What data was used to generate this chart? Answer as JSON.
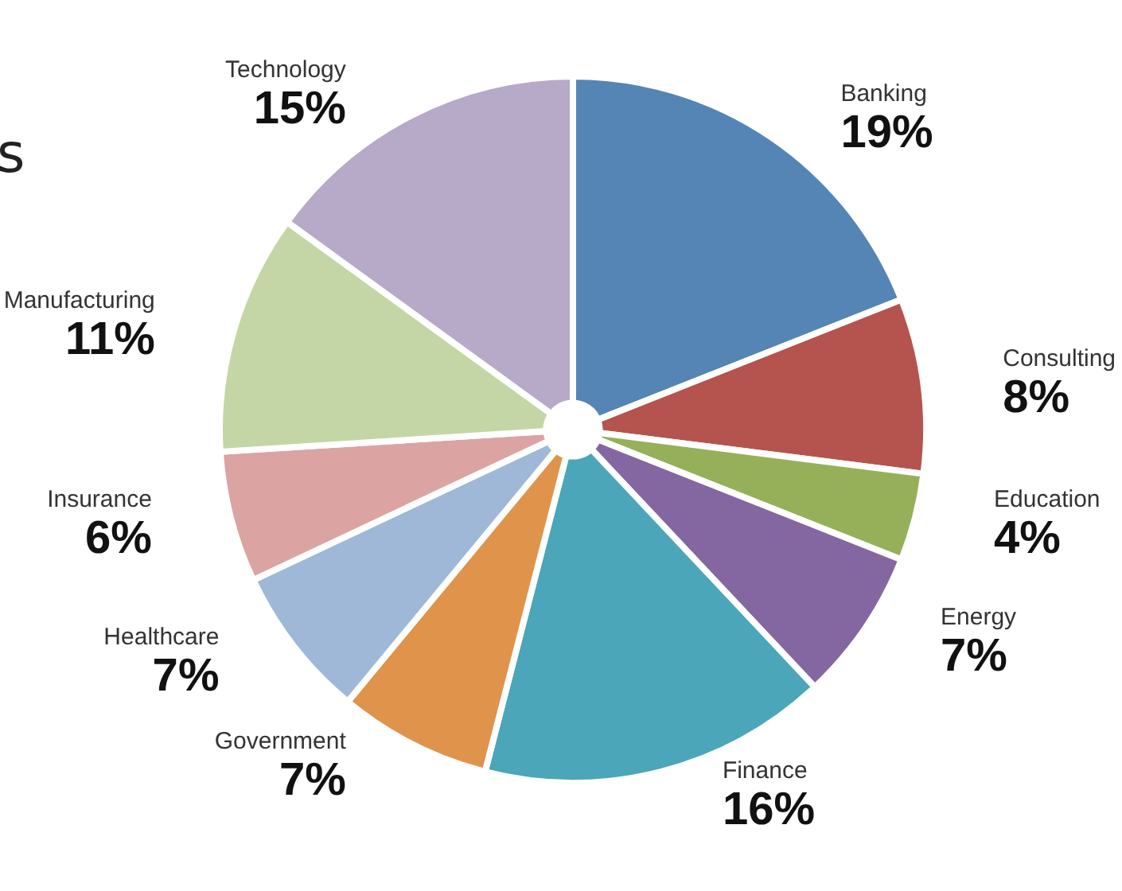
{
  "chart_data": {
    "type": "pie",
    "categories": [
      "Banking",
      "Consulting",
      "Education",
      "Energy",
      "Finance",
      "Government",
      "Healthcare",
      "Insurance",
      "Manufacturing",
      "Technology"
    ],
    "values": [
      19,
      8,
      4,
      7,
      16,
      7,
      7,
      6,
      11,
      15
    ],
    "value_labels": [
      "19%",
      "8%",
      "4%",
      "7%",
      "16%",
      "7%",
      "7%",
      "6%",
      "11%",
      "15%"
    ],
    "colors": [
      "#5585b5",
      "#b5534e",
      "#96b05a",
      "#8467a0",
      "#4aa6b8",
      "#e0934a",
      "#9fb8d8",
      "#dca3a3",
      "#c5d6a6",
      "#b7a9c8"
    ],
    "annotations": [
      "s"
    ],
    "legend": false
  }
}
